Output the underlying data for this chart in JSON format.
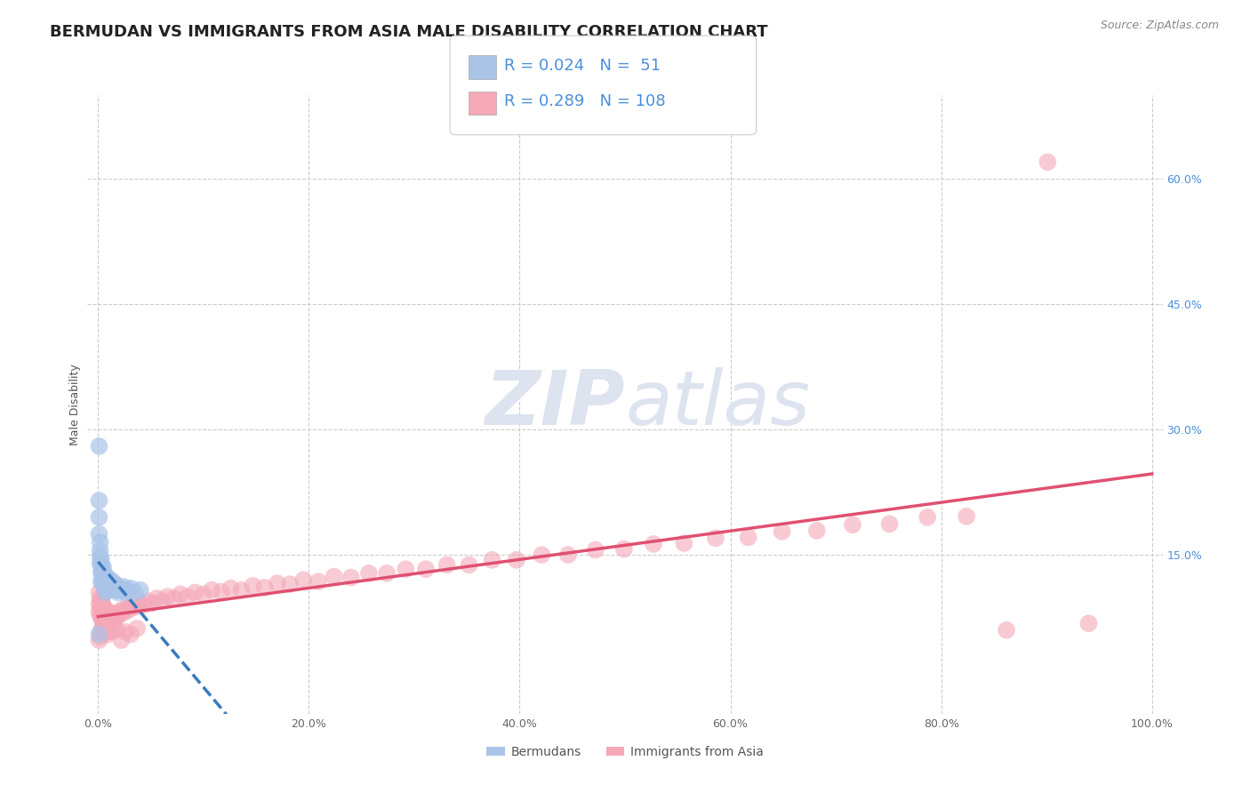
{
  "title": "BERMUDAN VS IMMIGRANTS FROM ASIA MALE DISABILITY CORRELATION CHART",
  "source": "Source: ZipAtlas.com",
  "ylabel_label": "Male Disability",
  "legend_labels": [
    "Bermudans",
    "Immigrants from Asia"
  ],
  "bermudans_R": "0.024",
  "bermudans_N": "51",
  "immigrants_R": "0.289",
  "immigrants_N": "108",
  "xlim": [
    -0.01,
    1.01
  ],
  "ylim": [
    -0.04,
    0.7
  ],
  "xticks": [
    0.0,
    0.2,
    0.4,
    0.6,
    0.8,
    1.0
  ],
  "xtick_labels": [
    "0.0%",
    "20.0%",
    "40.0%",
    "60.0%",
    "80.0%",
    "100.0%"
  ],
  "yticks": [
    0.15,
    0.3,
    0.45,
    0.6
  ],
  "ytick_labels": [
    "15.0%",
    "30.0%",
    "45.0%",
    "60.0%"
  ],
  "grid_color": "#cccccc",
  "bermudans_color": "#aac4e8",
  "immigrants_color": "#f4a8b8",
  "bermudans_line_color": "#3a7abf",
  "immigrants_line_color": "#e05070",
  "background_color": "#ffffff",
  "watermark_color": "#dde4f0",
  "title_fontsize": 13,
  "axis_label_fontsize": 9,
  "tick_fontsize": 9,
  "info_fontsize": 13,
  "bermudans_x": [
    0.001,
    0.001,
    0.001,
    0.002,
    0.002,
    0.002,
    0.002,
    0.003,
    0.003,
    0.003,
    0.003,
    0.004,
    0.004,
    0.004,
    0.004,
    0.005,
    0.005,
    0.005,
    0.005,
    0.006,
    0.006,
    0.006,
    0.007,
    0.007,
    0.007,
    0.008,
    0.008,
    0.009,
    0.009,
    0.01,
    0.01,
    0.011,
    0.011,
    0.012,
    0.013,
    0.014,
    0.015,
    0.016,
    0.017,
    0.018,
    0.019,
    0.02,
    0.022,
    0.024,
    0.026,
    0.028,
    0.031,
    0.035,
    0.04,
    0.001,
    0.001
  ],
  "bermudans_y": [
    0.215,
    0.195,
    0.175,
    0.165,
    0.155,
    0.148,
    0.14,
    0.138,
    0.145,
    0.13,
    0.118,
    0.132,
    0.125,
    0.118,
    0.128,
    0.12,
    0.128,
    0.115,
    0.135,
    0.125,
    0.118,
    0.112,
    0.125,
    0.118,
    0.105,
    0.12,
    0.112,
    0.118,
    0.108,
    0.122,
    0.112,
    0.118,
    0.108,
    0.115,
    0.112,
    0.118,
    0.11,
    0.115,
    0.108,
    0.112,
    0.105,
    0.11,
    0.108,
    0.112,
    0.105,
    0.108,
    0.11,
    0.105,
    0.108,
    0.055,
    0.28
  ],
  "immigrants_x": [
    0.001,
    0.001,
    0.001,
    0.002,
    0.002,
    0.002,
    0.003,
    0.003,
    0.003,
    0.004,
    0.004,
    0.004,
    0.005,
    0.005,
    0.005,
    0.006,
    0.006,
    0.007,
    0.007,
    0.008,
    0.008,
    0.009,
    0.009,
    0.01,
    0.01,
    0.011,
    0.012,
    0.013,
    0.014,
    0.015,
    0.016,
    0.017,
    0.018,
    0.019,
    0.02,
    0.022,
    0.024,
    0.026,
    0.028,
    0.03,
    0.033,
    0.036,
    0.039,
    0.043,
    0.047,
    0.051,
    0.056,
    0.061,
    0.066,
    0.072,
    0.078,
    0.085,
    0.092,
    0.1,
    0.108,
    0.117,
    0.126,
    0.136,
    0.147,
    0.158,
    0.17,
    0.182,
    0.195,
    0.209,
    0.224,
    0.24,
    0.257,
    0.274,
    0.292,
    0.311,
    0.331,
    0.352,
    0.374,
    0.397,
    0.421,
    0.446,
    0.472,
    0.499,
    0.527,
    0.556,
    0.586,
    0.617,
    0.649,
    0.682,
    0.716,
    0.751,
    0.787,
    0.824,
    0.862,
    0.901,
    0.94,
    0.001,
    0.002,
    0.003,
    0.004,
    0.005,
    0.006,
    0.007,
    0.008,
    0.009,
    0.01,
    0.012,
    0.015,
    0.018,
    0.022,
    0.026,
    0.031,
    0.037
  ],
  "immigrants_y": [
    0.105,
    0.092,
    0.082,
    0.098,
    0.088,
    0.078,
    0.095,
    0.085,
    0.075,
    0.092,
    0.082,
    0.072,
    0.089,
    0.079,
    0.069,
    0.082,
    0.072,
    0.085,
    0.075,
    0.082,
    0.072,
    0.078,
    0.068,
    0.082,
    0.072,
    0.078,
    0.075,
    0.072,
    0.078,
    0.075,
    0.078,
    0.075,
    0.08,
    0.077,
    0.082,
    0.08,
    0.085,
    0.082,
    0.088,
    0.085,
    0.09,
    0.088,
    0.092,
    0.09,
    0.095,
    0.092,
    0.098,
    0.095,
    0.1,
    0.098,
    0.103,
    0.1,
    0.105,
    0.103,
    0.108,
    0.106,
    0.11,
    0.108,
    0.113,
    0.111,
    0.116,
    0.115,
    0.12,
    0.118,
    0.124,
    0.123,
    0.128,
    0.128,
    0.133,
    0.133,
    0.138,
    0.138,
    0.144,
    0.144,
    0.15,
    0.15,
    0.156,
    0.157,
    0.163,
    0.164,
    0.17,
    0.171,
    0.178,
    0.179,
    0.186,
    0.187,
    0.195,
    0.196,
    0.06,
    0.62,
    0.068,
    0.048,
    0.052,
    0.058,
    0.062,
    0.065,
    0.068,
    0.062,
    0.058,
    0.055,
    0.06,
    0.058,
    0.062,
    0.06,
    0.048,
    0.058,
    0.055,
    0.062
  ]
}
